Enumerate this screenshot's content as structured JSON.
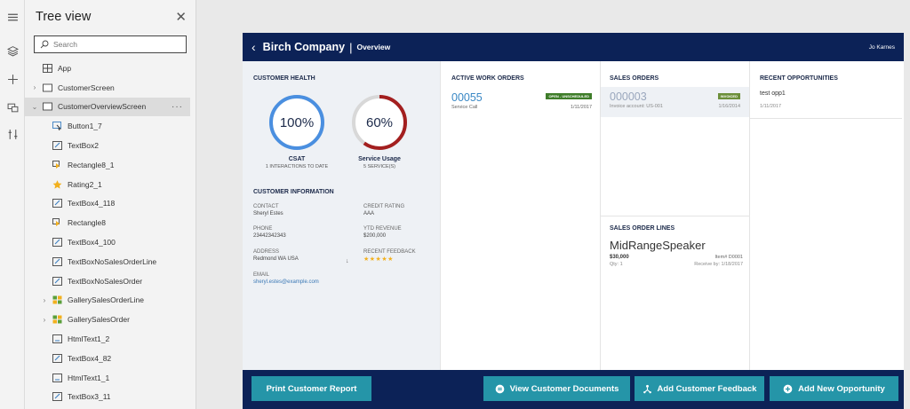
{
  "tree_view": {
    "title": "Tree view",
    "close_glyph": "✕",
    "search_placeholder": "Search",
    "items": [
      {
        "label": "App",
        "level": 0,
        "icon": "app-icon",
        "chevron": ""
      },
      {
        "label": "CustomerScreen",
        "level": 0,
        "icon": "screen-icon",
        "chevron": "›"
      },
      {
        "label": "CustomerOverviewScreen",
        "level": 0,
        "icon": "screen-icon",
        "chevron": "⌄",
        "selected": true,
        "more": "···"
      },
      {
        "label": "Button1_7",
        "level": 1,
        "icon": "button-icon"
      },
      {
        "label": "TextBox2",
        "level": 1,
        "icon": "textbox-icon"
      },
      {
        "label": "Rectangle8_1",
        "level": 1,
        "icon": "rectangle-icon"
      },
      {
        "label": "Rating2_1",
        "level": 1,
        "icon": "rating-icon"
      },
      {
        "label": "TextBox4_118",
        "level": 1,
        "icon": "textbox-icon"
      },
      {
        "label": "Rectangle8",
        "level": 1,
        "icon": "rectangle-icon"
      },
      {
        "label": "TextBox4_100",
        "level": 1,
        "icon": "textbox-icon"
      },
      {
        "label": "TextBoxNoSalesOrderLine",
        "level": 1,
        "icon": "textbox-icon"
      },
      {
        "label": "TextBoxNoSalesOrder",
        "level": 1,
        "icon": "textbox-icon"
      },
      {
        "label": "GallerySalesOrderLine",
        "level": 1,
        "icon": "gallery-icon",
        "chevron": "›"
      },
      {
        "label": "GallerySalesOrder",
        "level": 1,
        "icon": "gallery-icon",
        "chevron": "›"
      },
      {
        "label": "HtmlText1_2",
        "level": 1,
        "icon": "htmltext-icon"
      },
      {
        "label": "TextBox4_82",
        "level": 1,
        "icon": "textbox-icon"
      },
      {
        "label": "HtmlText1_1",
        "level": 1,
        "icon": "htmltext-icon"
      },
      {
        "label": "TextBox3_11",
        "level": 1,
        "icon": "textbox-icon"
      }
    ]
  },
  "rail": {
    "icons": [
      "hamburger-icon",
      "layers-icon",
      "plus-icon",
      "media-icon",
      "tools-icon"
    ]
  },
  "app": {
    "header": {
      "back_glyph": "‹",
      "company": "Birch Company",
      "separator": "|",
      "page": "Overview",
      "user": "Jo Karnes"
    },
    "customer_health": {
      "title": "CUSTOMER HEALTH",
      "gauges": [
        {
          "value_text": "100%",
          "percent": 100,
          "label": "CSAT",
          "sub": "1 INTERACTIONS TO DATE",
          "color": "#4a8fe0"
        },
        {
          "value_text": "60%",
          "percent": 60,
          "label": "Service Usage",
          "sub": "5 SERVICE(S)",
          "color": "#a31f1f"
        }
      ]
    },
    "customer_info": {
      "title": "CUSTOMER INFORMATION",
      "contact_label": "CONTACT",
      "contact_value": "Sheryl Estes",
      "credit_label": "CREDIT RATING",
      "credit_value": "AAA",
      "phone_label": "PHONE",
      "phone_value": "23442342343",
      "ytd_label": "YTD REVENUE",
      "ytd_value": "$200,000",
      "address_label": "ADDRESS",
      "address_value": "Redmond WA USA",
      "feedback_label": "RECENT FEEDBACK",
      "feedback_stars": "★★★★★",
      "feedback_rating": 5,
      "email_label": "EMAIL",
      "email_value": "sheryl.estes@example.com"
    },
    "work_orders": {
      "title": "ACTIVE WORK ORDERS",
      "number": "00055",
      "badge": "OPEN - UNSCHEDULED",
      "badge_color": "#3f7d2a",
      "type": "Service Call",
      "date": "1/11/2017"
    },
    "sales_orders": {
      "title": "SALES ORDERS",
      "number": "000003",
      "badge": "INVOICED",
      "badge_color": "#6c8f3a",
      "account": "Invoice account: US-001",
      "date": "1/16/2014"
    },
    "sales_order_lines": {
      "title": "SALES ORDER LINES",
      "product": "MidRangeSpeaker",
      "price": "$30,000",
      "item": "Item# D0001",
      "qty": "Qty: 1",
      "receive": "Receive by: 1/18/2017"
    },
    "opportunities": {
      "title": "RECENT OPPORTUNITIES",
      "name": "test opp1",
      "date": "1/11/2017"
    },
    "footer": {
      "print_label": "Print Customer Report",
      "docs_label": "View Customer Documents",
      "feedback_label": "Add Customer Feedback",
      "opportunity_label": "Add New Opportunity",
      "button_color": "#2595a8"
    }
  }
}
